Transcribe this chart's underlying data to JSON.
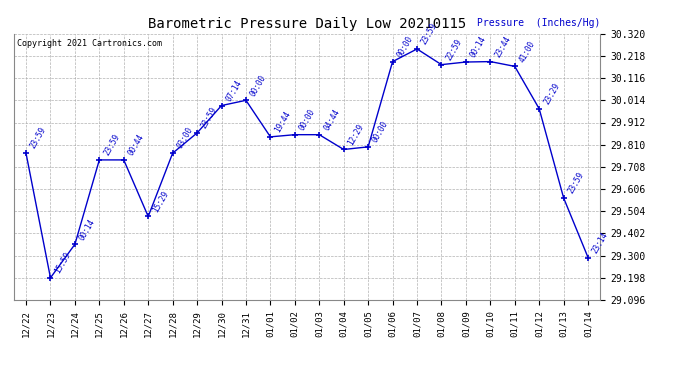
{
  "title": "Barometric Pressure Daily Low 20210115",
  "copyright": "Copyright 2021 Cartronics.com",
  "ylabel_line1": "Pressure  (Inches/Hg)",
  "background_color": "#ffffff",
  "line_color": "#0000cc",
  "text_color": "#0000cc",
  "ylim": [
    29.096,
    30.32
  ],
  "yticks": [
    29.096,
    29.198,
    29.3,
    29.402,
    29.504,
    29.606,
    29.708,
    29.81,
    29.912,
    30.014,
    30.116,
    30.218,
    30.32
  ],
  "dates": [
    "12/22",
    "12/23",
    "12/24",
    "12/25",
    "12/26",
    "12/27",
    "12/28",
    "12/29",
    "12/30",
    "12/31",
    "01/01",
    "01/02",
    "01/03",
    "01/04",
    "01/05",
    "01/06",
    "01/07",
    "01/08",
    "01/09",
    "01/10",
    "01/11",
    "01/12",
    "01/13",
    "01/14"
  ],
  "values": [
    29.771,
    29.198,
    29.352,
    29.74,
    29.74,
    29.48,
    29.771,
    29.864,
    29.99,
    30.014,
    29.846,
    29.856,
    29.856,
    29.788,
    29.8,
    30.192,
    30.25,
    30.178,
    30.19,
    30.192,
    30.17,
    29.975,
    29.565,
    29.291
  ],
  "point_labels": [
    "23:59",
    "15:59",
    "00:14",
    "23:59",
    "00:44",
    "15:29",
    "03:00",
    "23:59",
    "07:14",
    "00:00",
    "19:44",
    "00:00",
    "04:44",
    "12:29",
    "00:00",
    "00:00",
    "23:59",
    "22:59",
    "00:14",
    "23:44",
    "41:00",
    "23:29",
    "23:59",
    "23:14"
  ],
  "figwidth": 6.9,
  "figheight": 3.75,
  "dpi": 100
}
